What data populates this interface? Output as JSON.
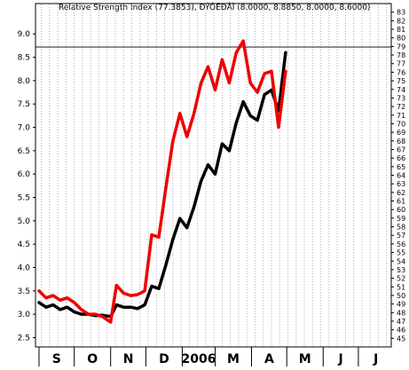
{
  "chart_data": {
    "type": "line",
    "title": "Relative Strength Index (77.3853), ÐÝÓÉÐÂÌ (8.0000, 8.8850, 8.0000, 8.6000)",
    "month_labels": [
      "S",
      "O",
      "N",
      "D",
      "2006",
      "M",
      "A",
      "M",
      "J",
      "J"
    ],
    "month_x": [
      0,
      30,
      61,
      91,
      122,
      150,
      181,
      211,
      242,
      272
    ],
    "x_range": [
      -3,
      300
    ],
    "left_axis": {
      "ylim": [
        2.3,
        9.65
      ],
      "ticks": [
        2.5,
        3.0,
        3.5,
        4.0,
        4.5,
        5.0,
        5.5,
        6.0,
        6.5,
        7.0,
        7.5,
        8.0,
        8.5,
        9.0
      ],
      "tick_labels": [
        "2.5",
        "3.0",
        "3.5",
        "4.0",
        "4.5",
        "5.0",
        "5.5",
        "6.0",
        "6.5",
        "7.0",
        "7.5",
        "8.0",
        "8.5",
        "9.0"
      ]
    },
    "right_axis": {
      "range": [
        44,
        84
      ],
      "ticks": [
        45,
        46,
        47,
        48,
        49,
        50,
        51,
        52,
        53,
        54,
        55,
        56,
        57,
        58,
        59,
        60,
        61,
        62,
        63,
        64,
        65,
        66,
        67,
        68,
        69,
        70,
        71,
        72,
        73,
        74,
        75,
        76,
        77,
        78,
        79,
        80,
        81,
        82,
        83
      ]
    },
    "reference_line": {
      "value": 8.72,
      "color": "#1a1a2e"
    },
    "grid": {
      "vertical": true,
      "style": "dotted"
    },
    "series": [
      {
        "color": "#000000",
        "x": [
          0,
          6,
          12,
          18,
          24,
          30,
          36,
          42,
          48,
          54,
          61,
          66,
          72,
          78,
          84,
          90,
          96,
          102,
          108,
          114,
          120,
          126,
          132,
          138,
          144,
          150,
          156,
          162,
          168,
          174,
          180,
          186,
          192,
          198,
          204,
          210
        ],
        "values": [
          3.25,
          3.15,
          3.2,
          3.1,
          3.15,
          3.05,
          3.0,
          3.0,
          2.97,
          2.98,
          2.95,
          3.2,
          3.15,
          3.15,
          3.12,
          3.2,
          3.6,
          3.55,
          4.05,
          4.6,
          5.05,
          4.85,
          5.3,
          5.85,
          6.2,
          6.0,
          6.65,
          6.5,
          7.1,
          7.55,
          7.25,
          7.15,
          7.7,
          7.8,
          7.35,
          8.6
        ]
      },
      {
        "color": "#ee0000",
        "x": [
          0,
          6,
          12,
          18,
          24,
          30,
          36,
          42,
          48,
          54,
          61,
          66,
          72,
          78,
          84,
          90,
          96,
          102,
          108,
          114,
          120,
          126,
          132,
          138,
          144,
          150,
          156,
          162,
          168,
          174,
          180,
          186,
          192,
          198,
          204,
          210
        ],
        "values": [
          3.5,
          3.35,
          3.4,
          3.3,
          3.35,
          3.25,
          3.1,
          3.0,
          3.0,
          2.95,
          2.83,
          3.62,
          3.45,
          3.4,
          3.42,
          3.5,
          4.7,
          4.65,
          5.7,
          6.7,
          7.3,
          6.8,
          7.3,
          7.95,
          8.3,
          7.8,
          8.45,
          7.95,
          8.6,
          8.85,
          7.95,
          7.75,
          8.15,
          8.2,
          7.0,
          8.2
        ]
      }
    ]
  }
}
